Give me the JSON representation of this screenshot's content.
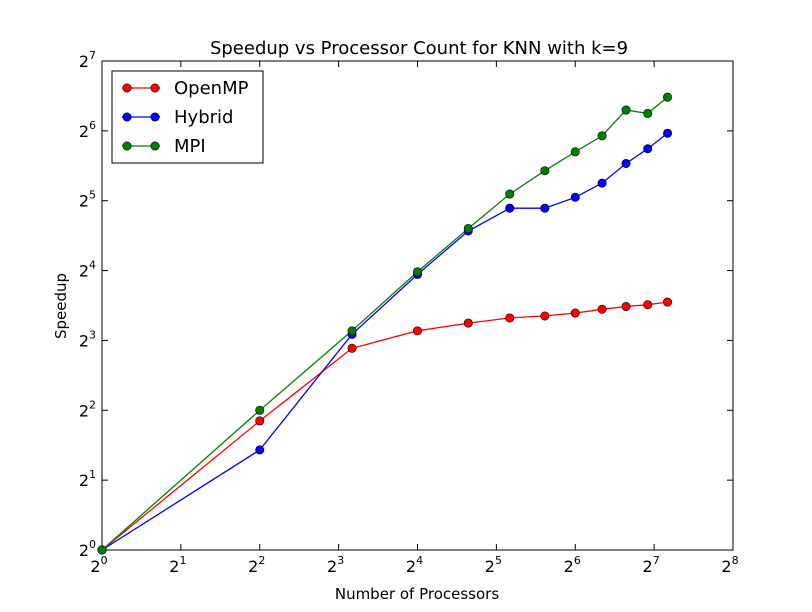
{
  "chart_data": {
    "type": "line",
    "title": "Speedup vs Processor Count for KNN with k=9",
    "xlabel": "Number of Processors",
    "ylabel": "Speedup",
    "xscale": "log2",
    "yscale": "log2",
    "xlim": [
      1,
      256
    ],
    "ylim": [
      1,
      128
    ],
    "x_tick_exponents": [
      "0",
      "1",
      "2",
      "3",
      "4",
      "5",
      "6",
      "7",
      "8"
    ],
    "y_tick_exponents": [
      "0",
      "1",
      "2",
      "3",
      "4",
      "5",
      "6",
      "7"
    ],
    "tick_base": "2",
    "legend_position": "upper-left",
    "x": [
      1,
      4,
      9,
      16,
      25,
      36,
      49,
      64,
      81,
      100,
      121,
      144
    ],
    "series": [
      {
        "name": "OpenMP",
        "color": "#ff0000",
        "values": [
          1,
          3.6,
          7.4,
          8.8,
          9.5,
          10.0,
          10.2,
          10.5,
          10.9,
          11.2,
          11.4,
          11.7
        ]
      },
      {
        "name": "Hybrid",
        "color": "#0000ff",
        "values": [
          1,
          2.7,
          8.5,
          15.4,
          23.7,
          29.7,
          29.7,
          33.1,
          38.1,
          46.3,
          53.6,
          62.5
        ]
      },
      {
        "name": "MPI",
        "color": "#008000",
        "values": [
          1,
          4.0,
          8.8,
          15.8,
          24.3,
          34.2,
          43.1,
          52.0,
          60.9,
          78.7,
          76.1,
          89.4
        ]
      }
    ]
  }
}
